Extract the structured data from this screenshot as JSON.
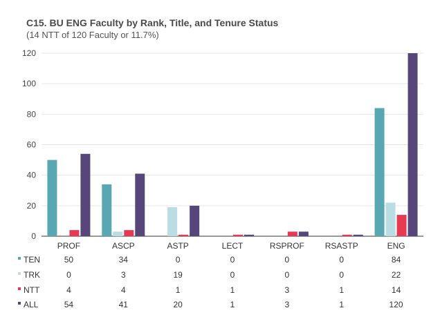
{
  "chart_data": {
    "type": "bar",
    "title": "C15. BU ENG Faculty by Rank, Title, and Tenure Status",
    "subtitle": "(14 NTT of 120 Faculty or 11.7%)",
    "categories": [
      "PROF",
      "ASCP",
      "ASTP",
      "LECT",
      "RSPROF",
      "RSASTP",
      "ENG"
    ],
    "series": [
      {
        "name": "TEN",
        "color": "#5aa7b4",
        "values": [
          50,
          34,
          0,
          0,
          0,
          0,
          84
        ]
      },
      {
        "name": "TRK",
        "color": "#b9dde3",
        "values": [
          0,
          3,
          19,
          0,
          0,
          0,
          22
        ]
      },
      {
        "name": "NTT",
        "color": "#e63a53",
        "values": [
          4,
          4,
          1,
          1,
          3,
          1,
          14
        ]
      },
      {
        "name": "ALL",
        "color": "#56467a",
        "values": [
          54,
          41,
          20,
          1,
          3,
          1,
          120
        ]
      }
    ],
    "ylim": [
      0,
      120
    ],
    "yticks": [
      0,
      20,
      40,
      60,
      80,
      100,
      120
    ],
    "grid": true,
    "legend": "data-table-left"
  }
}
